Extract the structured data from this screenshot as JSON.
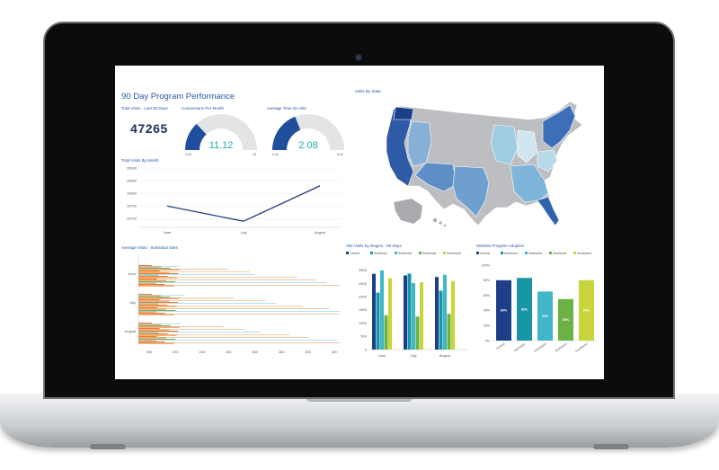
{
  "dashboard": {
    "title": "90 Day Program Performance",
    "total_visits": {
      "label": "Total Visits - Last 90 Days",
      "value": "47265"
    },
    "gauges": [
      {
        "label": "Conversions Per Month",
        "value": "11.12",
        "min": "0.00",
        "max": "43",
        "fraction": 0.26,
        "color": "#1f4e9c"
      },
      {
        "label": "Average Time On Site",
        "value": "2.08",
        "min": "0.00",
        "max": "5.41",
        "fraction": 0.38,
        "color": "#1f4e9c"
      }
    ],
    "map": {
      "title": "Visits By State"
    }
  },
  "chart_data": [
    {
      "type": "line",
      "title": "Total Visits By Month",
      "x": [
        "June",
        "July",
        "August"
      ],
      "yticks": [
        "15900",
        "15850",
        "15800",
        "15750",
        "15700"
      ],
      "ylim": [
        15680,
        15900
      ],
      "values": [
        15750,
        15690,
        15830
      ],
      "color": "#1f3e7c"
    },
    {
      "type": "bar",
      "title": "Average Visits - Individual Sites",
      "orientation": "horizontal",
      "categories": [
        "June",
        "July",
        "August"
      ],
      "xticks": [
        "180",
        "200",
        "220",
        "240",
        "260",
        "280",
        "300",
        "320"
      ],
      "xlim": [
        172,
        324
      ],
      "colors": [
        "#f07a2d",
        "#7ab55c",
        "#e4b88e",
        "#9fd8ec",
        "#f4c393"
      ],
      "groups": [
        [
          202,
          240,
          256,
          260,
          292,
          306,
          314,
          324
        ],
        [
          206,
          244,
          268,
          276,
          296,
          316,
          340,
          350
        ],
        [
          204,
          236,
          252,
          264,
          286,
          300,
          322,
          346
        ]
      ]
    },
    {
      "type": "bar",
      "title": "Site Visits by Region - 90 Days",
      "legend": [
        "Central",
        "Northeast",
        "Northwest",
        "Southeast",
        "Southwest"
      ],
      "colors": [
        "#1d3f87",
        "#1896a6",
        "#3fb6c9",
        "#6bb144",
        "#c8d43a"
      ],
      "categories": [
        "June",
        "July",
        "August"
      ],
      "yticks": [
        "3000",
        "2500",
        "2000",
        "1500",
        "1000",
        "500",
        "0"
      ],
      "ylim": [
        0,
        3200
      ],
      "series": [
        [
          2870,
          2810,
          2750
        ],
        [
          2160,
          2880,
          2230
        ],
        [
          3000,
          2520,
          2830
        ],
        [
          1300,
          1250,
          1350
        ],
        [
          2700,
          2550,
          2600
        ]
      ]
    },
    {
      "type": "bar",
      "title": "Website Program Adoption",
      "legend": [
        "Central",
        "Northeast",
        "Northwest",
        "Southeast",
        "Southwest"
      ],
      "colors": [
        "#1d3f87",
        "#1896a6",
        "#3fb6c9",
        "#6bb144",
        "#c8d43a"
      ],
      "categories": [
        "Central",
        "Northeast",
        "Northwest",
        "Southeast",
        "Southwest"
      ],
      "yticks": [
        "100%",
        "80%",
        "60%",
        "40%",
        "20%",
        "0%"
      ],
      "values": [
        80,
        83,
        65,
        55,
        80
      ],
      "labels": [
        "80%",
        "83%",
        "65%",
        "55%",
        "80%"
      ]
    }
  ]
}
